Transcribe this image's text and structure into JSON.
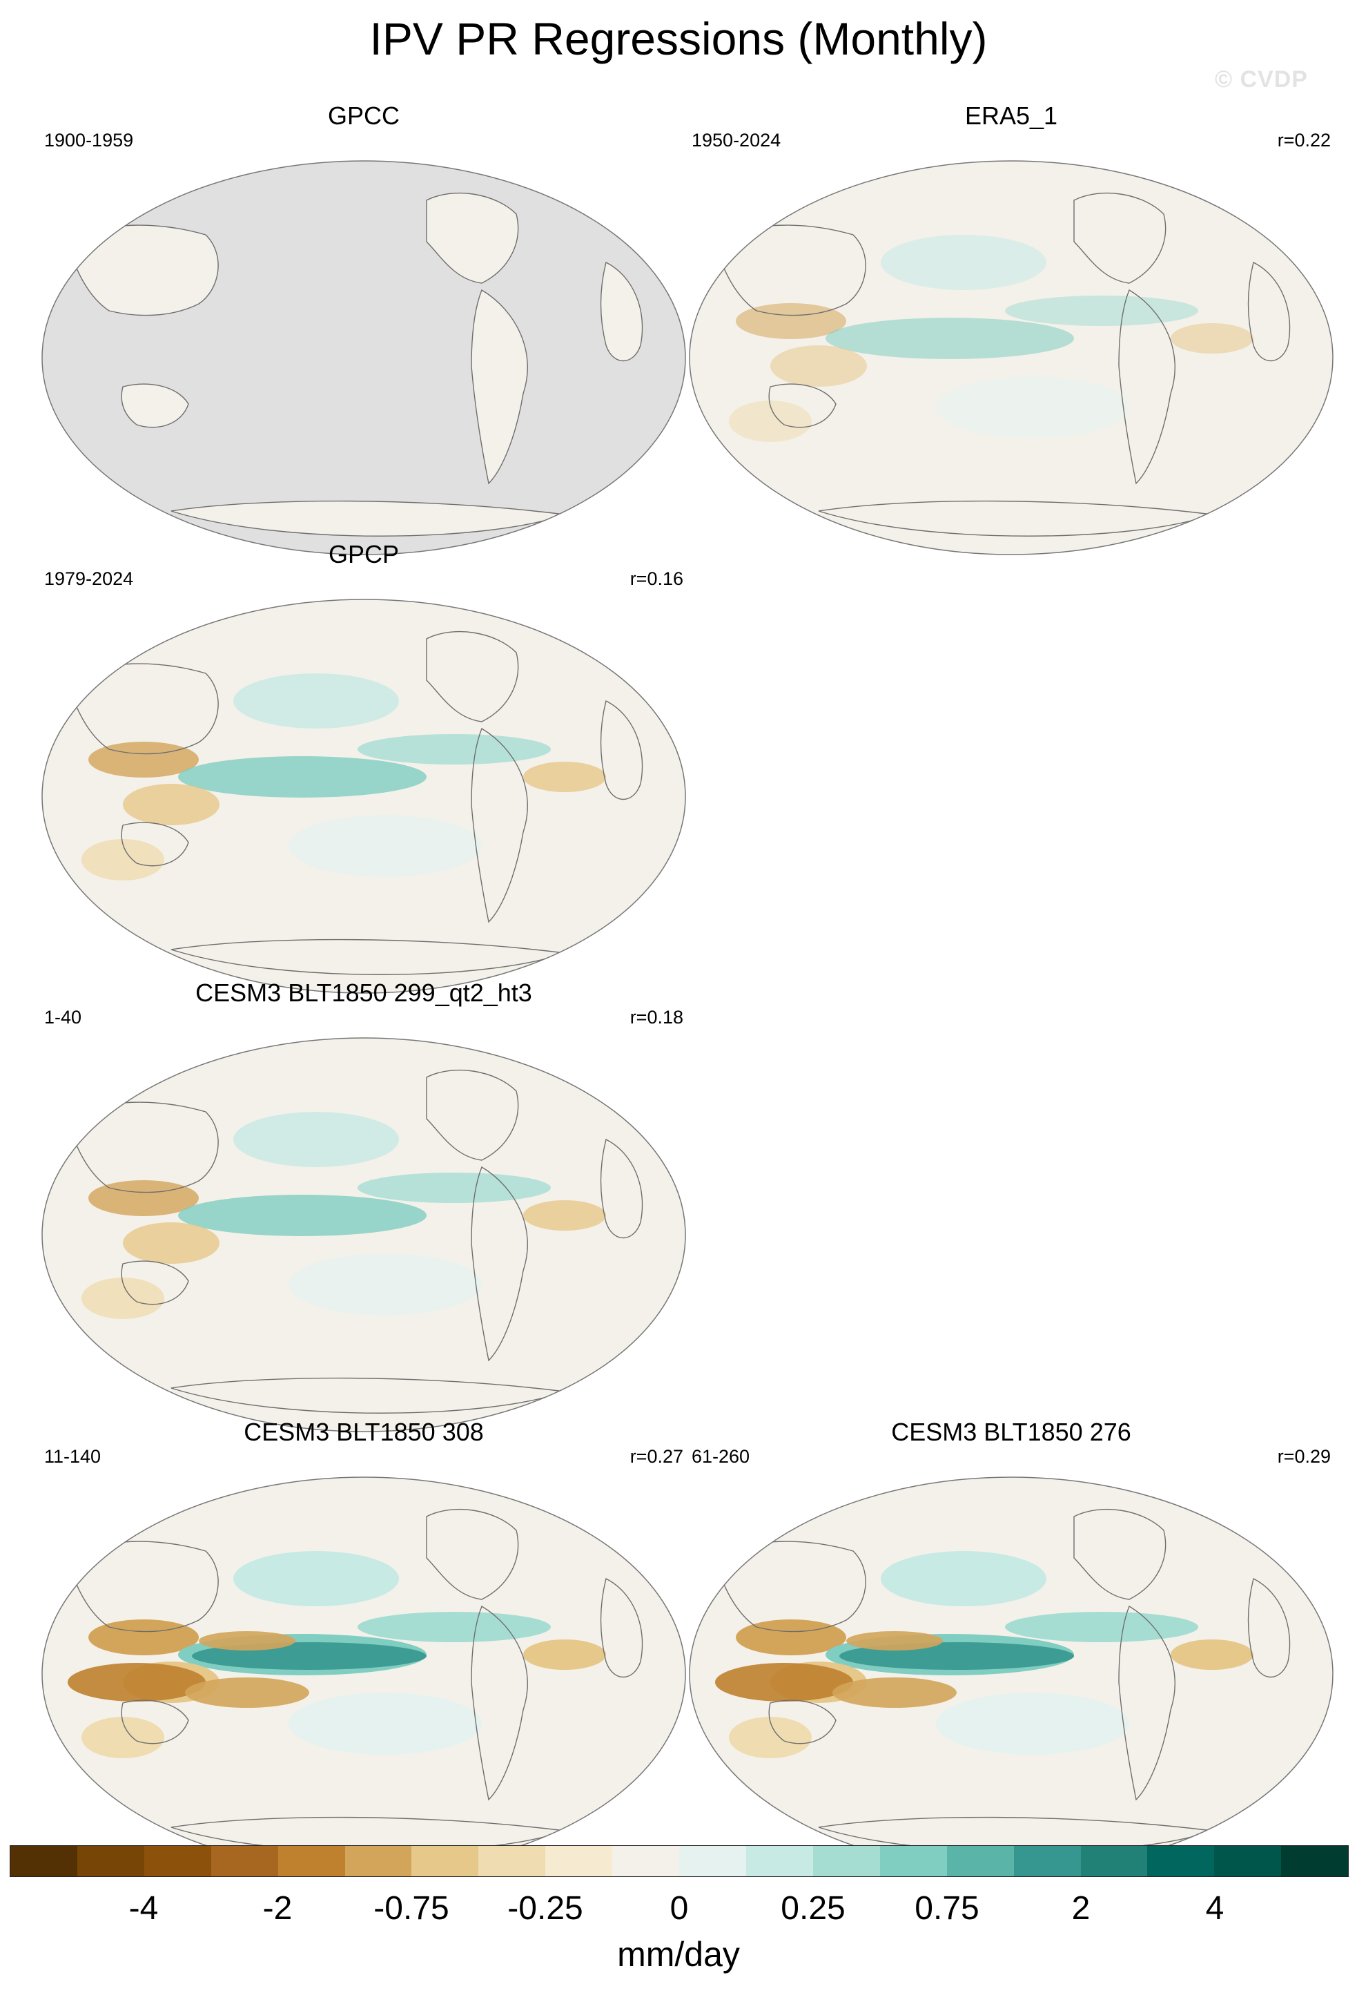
{
  "title": "IPV PR Regressions (Monthly)",
  "watermark": "© CVDP",
  "panels": [
    {
      "title": "GPCC",
      "years": "1900-1959",
      "r": "",
      "pattern": "land-only"
    },
    {
      "title": "ERA5_1",
      "years": "1950-2024",
      "r": "r=0.22",
      "pattern": "weak"
    },
    {
      "title": "GPCP",
      "years": "1979-2024",
      "r": "r=0.16",
      "pattern": "moderate"
    },
    {
      "title": "CESM3 BLT1850 299_qt2_ht3",
      "years": "1-40",
      "r": "r=0.18",
      "pattern": "moderate"
    },
    {
      "title": "CESM3 BLT1850 308",
      "years": "11-140",
      "r": "r=0.27",
      "pattern": "strong"
    },
    {
      "title": "CESM3 BLT1850 276",
      "years": "61-260",
      "r": "r=0.29",
      "pattern": "strong"
    }
  ],
  "colorbar": {
    "units": "mm/day",
    "labels": [
      "-4",
      "-2",
      "-0.75",
      "-0.25",
      "0",
      "0.25",
      "0.75",
      "2",
      "4"
    ],
    "colors": [
      "#543005",
      "#774607",
      "#8c510a",
      "#a86720",
      "#bf812d",
      "#d3a55a",
      "#e6c88a",
      "#efdcb0",
      "#f6ebd0",
      "#f4f1ea",
      "#e6f2f0",
      "#c7eae5",
      "#a6ddd3",
      "#80cdc1",
      "#5ab4a8",
      "#35978f",
      "#218177",
      "#01665e",
      "#01564c",
      "#003c30"
    ]
  },
  "colors": {
    "land_mask": "#e0e0e0",
    "coast": "#6e6e6e",
    "neutral": "#f4f1ea"
  }
}
